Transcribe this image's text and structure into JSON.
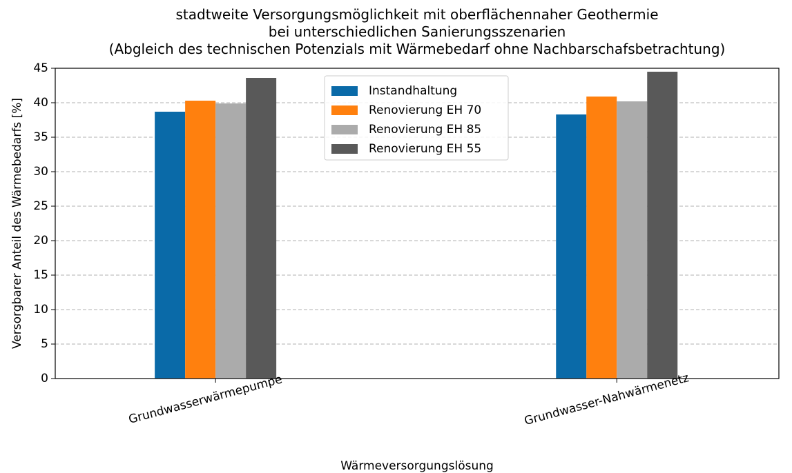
{
  "chart_data": {
    "type": "bar",
    "title": [
      "stadtweite Versorgungsmöglichkeit mit oberflächennaher Geothermie",
      "bei unterschiedlichen Sanierungsszenarien",
      "(Abgleich des technischen Potenzials mit Wärmebedarf ohne Nachbarschafsbetrachtung)"
    ],
    "x_label": "Wärmeversorgungslösung",
    "y_label": "Versorgbarer Anteil des Wärmebedarfs [%]",
    "categories": [
      "Grundwasserwärmepumpe",
      "Grundwasser-Nahwärmenetz"
    ],
    "series": [
      {
        "name": "Instandhaltung",
        "color": "#0a6aa8",
        "values": [
          38.7,
          38.3
        ]
      },
      {
        "name": "Renovierung EH 70",
        "color": "#ff800e",
        "values": [
          40.3,
          40.9
        ]
      },
      {
        "name": "Renovierung EH 85",
        "color": "#ababab",
        "values": [
          39.9,
          40.2
        ]
      },
      {
        "name": "Renovierung EH 55",
        "color": "#595959",
        "values": [
          43.6,
          44.5
        ]
      }
    ],
    "ylim": [
      0,
      45
    ],
    "yticks": [
      0,
      5,
      10,
      15,
      20,
      25,
      30,
      35,
      40,
      45
    ],
    "grid": true,
    "legend": "upper center"
  }
}
